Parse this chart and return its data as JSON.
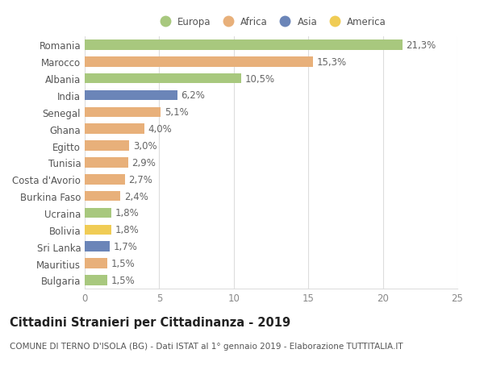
{
  "countries": [
    "Romania",
    "Marocco",
    "Albania",
    "India",
    "Senegal",
    "Ghana",
    "Egitto",
    "Tunisia",
    "Costa d'Avorio",
    "Burkina Faso",
    "Ucraina",
    "Bolivia",
    "Sri Lanka",
    "Mauritius",
    "Bulgaria"
  ],
  "values": [
    21.3,
    15.3,
    10.5,
    6.2,
    5.1,
    4.0,
    3.0,
    2.9,
    2.7,
    2.4,
    1.8,
    1.8,
    1.7,
    1.5,
    1.5
  ],
  "labels": [
    "21,3%",
    "15,3%",
    "10,5%",
    "6,2%",
    "5,1%",
    "4,0%",
    "3,0%",
    "2,9%",
    "2,7%",
    "2,4%",
    "1,8%",
    "1,8%",
    "1,7%",
    "1,5%",
    "1,5%"
  ],
  "continents": [
    "Europa",
    "Africa",
    "Europa",
    "Asia",
    "Africa",
    "Africa",
    "Africa",
    "Africa",
    "Africa",
    "Africa",
    "Europa",
    "America",
    "Asia",
    "Africa",
    "Europa"
  ],
  "colors": {
    "Europa": "#a8c87e",
    "Africa": "#e8b07a",
    "Asia": "#6b85b8",
    "America": "#f0cc55"
  },
  "legend_order": [
    "Europa",
    "Africa",
    "Asia",
    "America"
  ],
  "xlim": [
    0,
    25
  ],
  "xticks": [
    0,
    5,
    10,
    15,
    20,
    25
  ],
  "title": "Cittadini Stranieri per Cittadinanza - 2019",
  "subtitle": "COMUNE DI TERNO D'ISOLA (BG) - Dati ISTAT al 1° gennaio 2019 - Elaborazione TUTTITALIA.IT",
  "background_color": "#ffffff",
  "grid_color": "#dddddd",
  "bar_height": 0.6,
  "label_fontsize": 8.5,
  "tick_fontsize": 8.5,
  "title_fontsize": 10.5,
  "subtitle_fontsize": 7.5
}
